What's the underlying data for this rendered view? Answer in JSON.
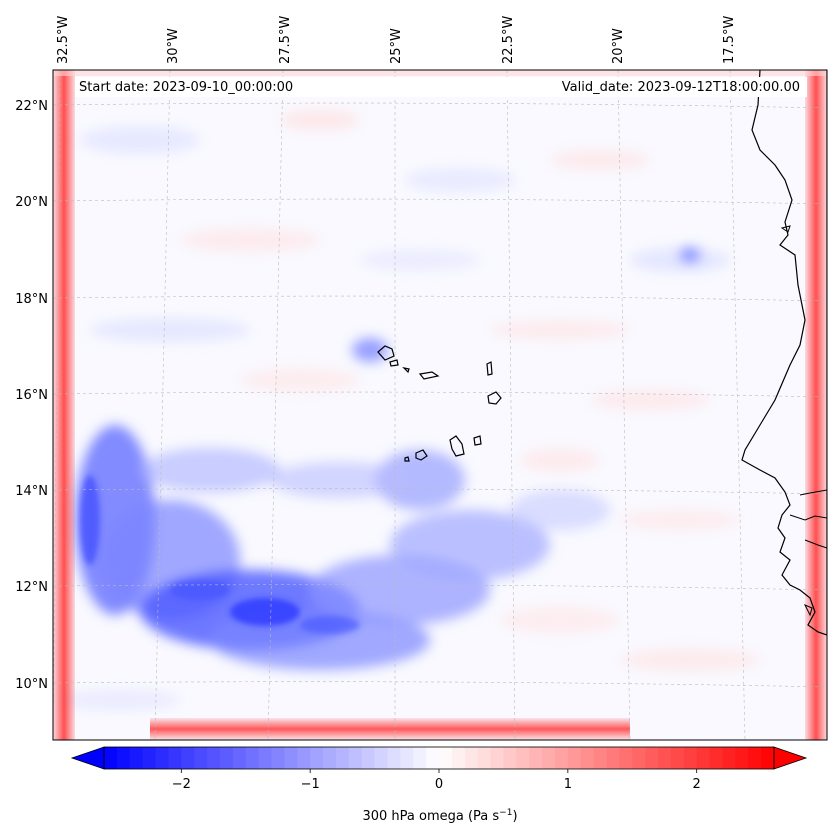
{
  "header": {
    "start_date": "Start date: 2023-09-10_00:00:00",
    "valid_date": "Valid_date: 2023-09-12T18:00:00.00"
  },
  "longitude_labels": [
    "32.5°W",
    "30°W",
    "27.5°W",
    "25°W",
    "22.5°W",
    "20°W",
    "17.5°W"
  ],
  "latitude_labels": [
    "22°N",
    "20°N",
    "18°N",
    "16°N",
    "14°N",
    "12°N",
    "10°N"
  ],
  "colorbar": {
    "label_main": "300 hPa omega (Pa s",
    "label_sup": "−1",
    "label_end": ")",
    "tick_labels": [
      "−2",
      "−1",
      "0",
      "1",
      "2"
    ],
    "tick_values": [
      -2,
      -1,
      0,
      1,
      2
    ],
    "vmin": -2.6,
    "vmax": 2.6,
    "colormap": "bwr",
    "extend": "both"
  },
  "colors": {
    "negative": "#0000ff",
    "neutral": "#ffffff",
    "positive": "#ff0000",
    "coastline": "#000000",
    "gridline": "#bbbbbb"
  }
}
